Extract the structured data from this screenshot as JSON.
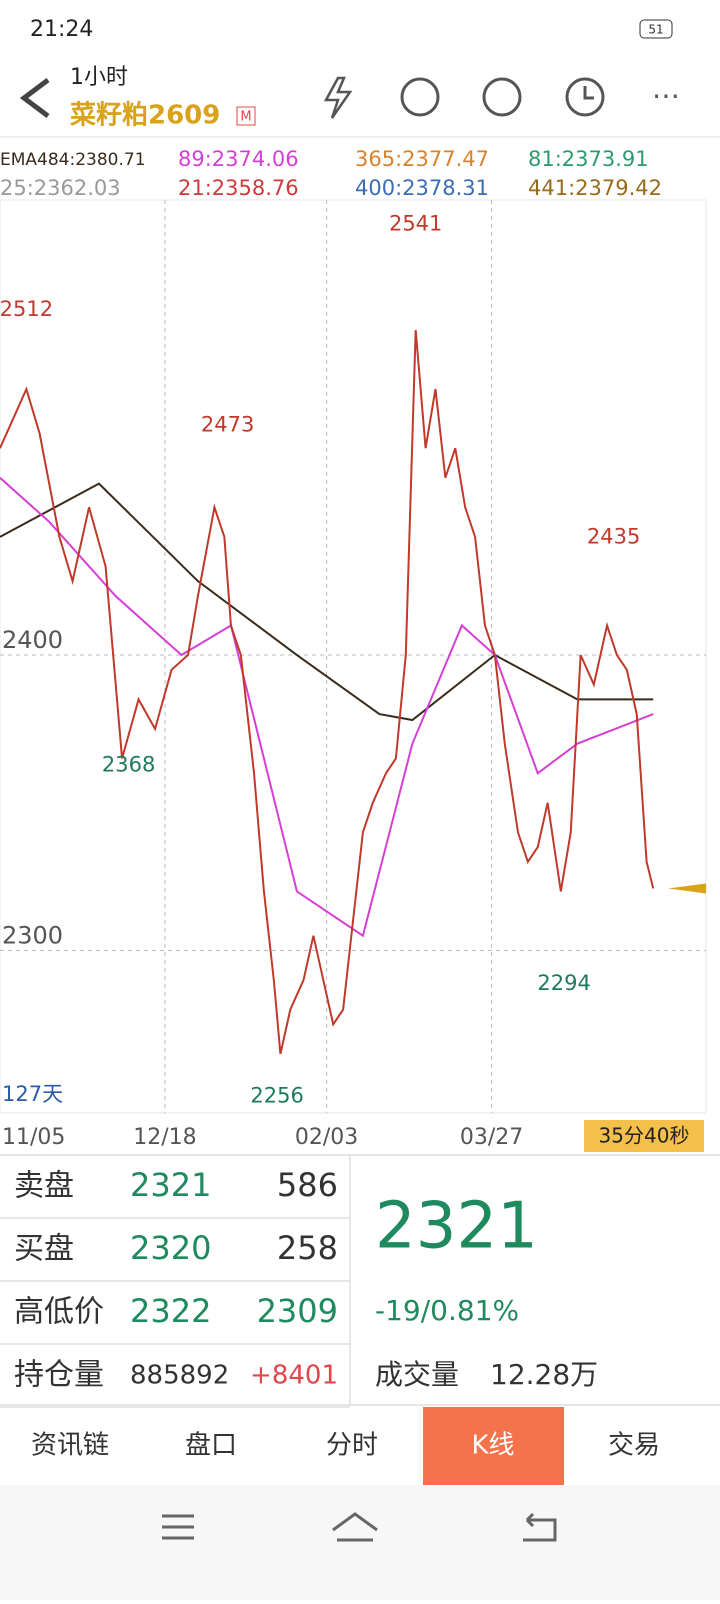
{
  "status_bar": {
    "time": "21:24",
    "battery": "51"
  },
  "header": {
    "period": "1小时",
    "title": "菜籽粕2609",
    "badge": "M"
  },
  "chart_data": {
    "type": "line",
    "legend_extra": [
      {
        "text": "365:2377.47",
        "color": "#d9822b"
      },
      {
        "text": "81:2373.91",
        "color": "#2e9b6e"
      },
      {
        "text": "25:2362.03",
        "color": "#999999"
      },
      {
        "text": "21:2358.76",
        "color": "#d03a3a"
      },
      {
        "text": "400:2378.31",
        "color": "#3d6db5"
      },
      {
        "text": "441:2379.42",
        "color": "#9a6a1a"
      }
    ],
    "color": "#c0392b",
    "x": [
      0,
      8,
      12,
      18,
      22,
      27,
      32,
      37,
      42,
      47,
      52,
      57,
      60,
      65,
      68,
      70,
      73,
      77,
      80,
      83,
      85,
      88,
      92,
      95,
      98,
      101,
      104,
      107,
      110,
      113,
      117,
      120,
      123,
      126,
      129,
      132,
      135,
      138,
      141,
      144,
      147,
      150,
      153,
      157,
      160,
      163,
      166,
      170,
      173,
      176,
      180,
      184,
      187,
      190,
      193,
      196,
      198
    ],
    "values": [
      2470,
      2490,
      2475,
      2440,
      2425,
      2450,
      2430,
      2365,
      2385,
      2375,
      2395,
      2400,
      2420,
      2450,
      2440,
      2410,
      2400,
      2360,
      2320,
      2290,
      2265,
      2280,
      2290,
      2305,
      2290,
      2275,
      2280,
      2310,
      2340,
      2350,
      2360,
      2365,
      2400,
      2510,
      2470,
      2490,
      2460,
      2470,
      2450,
      2440,
      2410,
      2400,
      2370,
      2340,
      2330,
      2335,
      2350,
      2320,
      2340,
      2400,
      2390,
      2410,
      2400,
      2395,
      2380,
      2330,
      2321
    ],
    "series": [
      {
        "name": "EMA484:2380.71",
        "color": "#3a2a1a",
        "x": [
          0,
          30,
          60,
          90,
          115,
          125,
          150,
          175,
          198
        ],
        "values": [
          2440,
          2458,
          2425,
          2400,
          2380,
          2378,
          2400,
          2385,
          2385
        ]
      },
      {
        "name": "89:2374.06",
        "color": "#d63fd6",
        "x": [
          0,
          15,
          35,
          55,
          70,
          90,
          110,
          125,
          140,
          150,
          163,
          175,
          198
        ],
        "values": [
          2460,
          2445,
          2420,
          2400,
          2410,
          2320,
          2305,
          2370,
          2410,
          2400,
          2360,
          2370,
          2380
        ]
      }
    ],
    "xlim": [
      0,
      214
    ],
    "ylim": [
      2245,
      2554
    ],
    "xticks": [
      {
        "value": 0,
        "label": "11/05"
      },
      {
        "value": 50,
        "label": "12/18"
      },
      {
        "value": 99,
        "label": "02/03"
      },
      {
        "value": 149,
        "label": "03/27"
      }
    ],
    "yticks": [
      2400,
      2300
    ],
    "grid": true,
    "annotations": [
      {
        "x": 8,
        "value": 2512,
        "kind": "high"
      },
      {
        "x": 69,
        "value": 2473,
        "kind": "high"
      },
      {
        "x": 126,
        "value": 2541,
        "kind": "high"
      },
      {
        "x": 186,
        "value": 2435,
        "kind": "high"
      },
      {
        "x": 39,
        "value": 2368,
        "kind": "low"
      },
      {
        "x": 84,
        "value": 2256,
        "kind": "low"
      },
      {
        "x": 171,
        "value": 2294,
        "kind": "low"
      }
    ],
    "span_label": "127天",
    "countdown": "35分40秒",
    "last_price": 2321
  },
  "table": {
    "rows": [
      [
        "卖盘",
        "2321",
        "586"
      ],
      [
        "买盘",
        "2320",
        "258"
      ],
      [
        "高低价",
        "2322",
        "2309"
      ],
      [
        "持仓量",
        "885892",
        "+8401"
      ]
    ]
  },
  "quote": {
    "price": "2321",
    "change": "-19/0.81%",
    "volume_label": "成交量",
    "volume": "12.28万"
  },
  "tabs": [
    "资讯链",
    "盘口",
    "分时",
    "K线",
    "交易"
  ],
  "active_tab": 3
}
